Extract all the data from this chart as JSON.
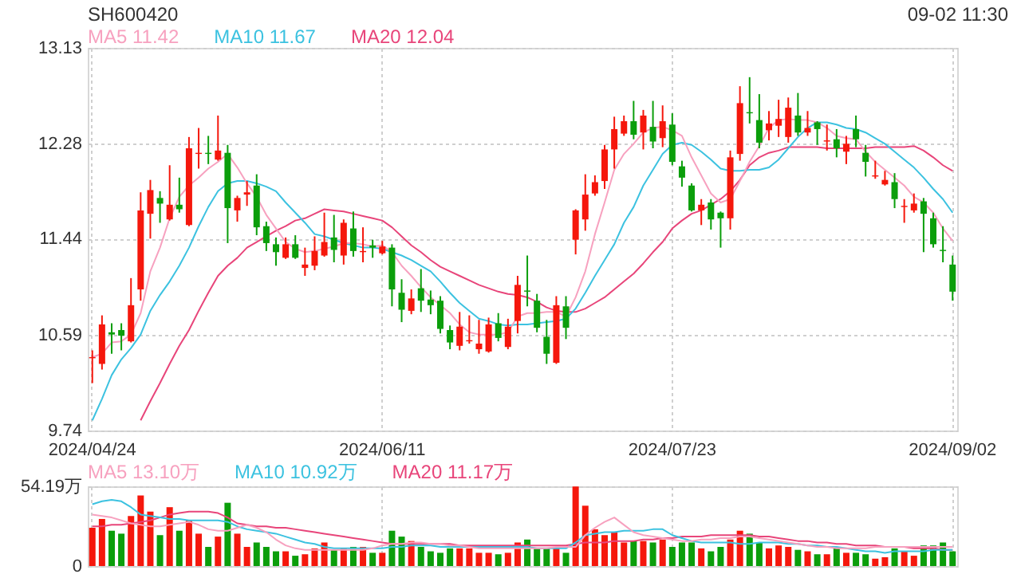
{
  "chart_data": [
    {
      "type": "candlestick",
      "title": "SH600420",
      "annotations": [
        "09-02 11:30"
      ],
      "categories": [
        "2024/04/24",
        null,
        null,
        null,
        null,
        null,
        null,
        null,
        null,
        null,
        null,
        null,
        null,
        null,
        null,
        null,
        null,
        null,
        null,
        null,
        null,
        null,
        null,
        null,
        null,
        null,
        null,
        null,
        null,
        null,
        "2024/06/11",
        null,
        null,
        null,
        null,
        null,
        null,
        null,
        null,
        null,
        null,
        null,
        null,
        null,
        null,
        null,
        null,
        null,
        null,
        null,
        null,
        null,
        null,
        null,
        null,
        null,
        null,
        null,
        null,
        null,
        "2024/07/23",
        null,
        null,
        null,
        null,
        null,
        null,
        null,
        null,
        null,
        null,
        null,
        null,
        null,
        null,
        null,
        null,
        null,
        null,
        null,
        null,
        null,
        null,
        null,
        null,
        null,
        null,
        null,
        null,
        "2024/09/02"
      ],
      "ohlc": [
        [
          10.38,
          10.45,
          10.16,
          10.39
        ],
        [
          10.33,
          10.76,
          10.28,
          10.68
        ],
        [
          10.61,
          10.69,
          10.42,
          10.59
        ],
        [
          10.63,
          10.69,
          10.45,
          10.58
        ],
        [
          10.53,
          11.09,
          10.52,
          10.85
        ],
        [
          10.99,
          11.85,
          10.89,
          11.69
        ],
        [
          11.66,
          11.96,
          11.44,
          11.87
        ],
        [
          11.8,
          11.86,
          11.58,
          11.75
        ],
        [
          11.61,
          12.09,
          11.6,
          11.74
        ],
        [
          11.74,
          11.98,
          11.67,
          11.7
        ],
        [
          11.56,
          12.34,
          11.55,
          12.24
        ],
        [
          12.19,
          12.42,
          12.06,
          12.2
        ],
        [
          12.2,
          12.35,
          12.1,
          12.19
        ],
        [
          12.14,
          12.53,
          12.13,
          12.22
        ],
        [
          12.2,
          12.27,
          11.4,
          11.71
        ],
        [
          11.69,
          11.82,
          11.59,
          11.8
        ],
        [
          11.83,
          11.95,
          11.73,
          11.85
        ],
        [
          11.91,
          12.01,
          11.47,
          11.54
        ],
        [
          11.55,
          11.59,
          11.33,
          11.4
        ],
        [
          11.39,
          11.45,
          11.2,
          11.32
        ],
        [
          11.27,
          11.45,
          11.26,
          11.39
        ],
        [
          11.39,
          11.47,
          11.26,
          11.27
        ],
        [
          11.18,
          11.36,
          11.11,
          11.21
        ],
        [
          11.2,
          11.46,
          11.16,
          11.33
        ],
        [
          11.29,
          11.67,
          11.28,
          11.41
        ],
        [
          11.45,
          11.65,
          11.23,
          11.34
        ],
        [
          11.29,
          11.61,
          11.21,
          11.58
        ],
        [
          11.53,
          11.68,
          11.28,
          11.33
        ],
        [
          11.32,
          11.54,
          11.23,
          11.33
        ],
        [
          11.38,
          11.43,
          11.27,
          11.36
        ],
        [
          11.31,
          11.42,
          11.3,
          11.37
        ],
        [
          11.36,
          11.39,
          10.84,
          10.99
        ],
        [
          10.96,
          11.08,
          10.7,
          10.81
        ],
        [
          10.8,
          10.99,
          10.77,
          10.91
        ],
        [
          11.0,
          11.17,
          10.79,
          10.89
        ],
        [
          10.9,
          10.98,
          10.77,
          10.85
        ],
        [
          10.89,
          10.93,
          10.6,
          10.64
        ],
        [
          10.63,
          10.67,
          10.46,
          10.52
        ],
        [
          10.49,
          10.79,
          10.45,
          10.66
        ],
        [
          10.53,
          10.76,
          10.51,
          10.54
        ],
        [
          10.46,
          10.72,
          10.42,
          10.51
        ],
        [
          10.44,
          10.74,
          10.43,
          10.68
        ],
        [
          10.69,
          10.78,
          10.53,
          10.56
        ],
        [
          10.48,
          10.73,
          10.46,
          10.66
        ],
        [
          10.71,
          11.11,
          10.6,
          11.03
        ],
        [
          10.98,
          11.29,
          10.84,
          10.97
        ],
        [
          10.89,
          10.95,
          10.61,
          10.65
        ],
        [
          10.57,
          10.72,
          10.33,
          10.42
        ],
        [
          10.34,
          10.93,
          10.33,
          10.85
        ],
        [
          10.84,
          10.93,
          10.55,
          10.65
        ],
        [
          11.43,
          11.7,
          11.3,
          11.69
        ],
        [
          11.61,
          12.01,
          11.51,
          11.83
        ],
        [
          11.84,
          12.0,
          11.82,
          11.94
        ],
        [
          11.95,
          12.27,
          11.88,
          12.23
        ],
        [
          12.23,
          12.52,
          12.06,
          12.41
        ],
        [
          12.37,
          12.53,
          12.35,
          12.48
        ],
        [
          12.48,
          12.66,
          12.32,
          12.36
        ],
        [
          12.38,
          12.58,
          12.23,
          12.53
        ],
        [
          12.43,
          12.66,
          12.24,
          12.3
        ],
        [
          12.33,
          12.62,
          12.25,
          12.48
        ],
        [
          12.45,
          12.55,
          12.09,
          12.12
        ],
        [
          12.08,
          12.13,
          11.9,
          11.98
        ],
        [
          11.91,
          11.93,
          11.68,
          11.69
        ],
        [
          11.69,
          11.79,
          11.56,
          11.74
        ],
        [
          11.76,
          11.79,
          11.52,
          11.61
        ],
        [
          11.67,
          11.68,
          11.36,
          11.62
        ],
        [
          11.62,
          12.22,
          11.52,
          12.16
        ],
        [
          12.19,
          12.79,
          12.13,
          12.64
        ],
        [
          12.56,
          12.87,
          12.46,
          12.55
        ],
        [
          12.49,
          12.72,
          12.24,
          12.29
        ],
        [
          12.4,
          12.57,
          12.31,
          12.46
        ],
        [
          12.44,
          12.67,
          12.34,
          12.5
        ],
        [
          12.34,
          12.69,
          12.29,
          12.6
        ],
        [
          12.53,
          12.73,
          12.35,
          12.38
        ],
        [
          12.38,
          12.57,
          12.35,
          12.42
        ],
        [
          12.47,
          12.48,
          12.27,
          12.41
        ],
        [
          12.3,
          12.45,
          12.22,
          12.31
        ],
        [
          12.32,
          12.41,
          12.16,
          12.24
        ],
        [
          12.21,
          12.35,
          12.1,
          12.28
        ],
        [
          12.41,
          12.53,
          12.25,
          12.32
        ],
        [
          12.2,
          12.27,
          11.99,
          12.12
        ],
        [
          11.99,
          12.13,
          11.97,
          12.0
        ],
        [
          11.92,
          12.04,
          11.91,
          11.96
        ],
        [
          11.94,
          12.02,
          11.71,
          11.79
        ],
        [
          11.72,
          11.79,
          11.58,
          11.73
        ],
        [
          11.69,
          11.84,
          11.67,
          11.75
        ],
        [
          11.77,
          11.8,
          11.32,
          11.66
        ],
        [
          11.62,
          11.67,
          11.36,
          11.39
        ],
        [
          11.34,
          11.55,
          11.23,
          11.33
        ],
        [
          11.21,
          11.29,
          10.89,
          10.97
        ]
      ],
      "colors": [
        "#f5170c",
        "#f5170c",
        "#0b9e0b",
        "#0b9e0b",
        "#f5170c",
        "#f5170c",
        "#f5170c",
        "#0b9e0b",
        "#f5170c",
        "#0b9e0b",
        "#f5170c",
        "#f5170c",
        "#0b9e0b",
        "#f5170c",
        "#0b9e0b",
        "#f5170c",
        "#f5170c",
        "#0b9e0b",
        "#0b9e0b",
        "#0b9e0b",
        "#f5170c",
        "#0b9e0b",
        "#f5170c",
        "#f5170c",
        "#f5170c",
        "#0b9e0b",
        "#f5170c",
        "#0b9e0b",
        "#f5170c",
        "#0b9e0b",
        "#f5170c",
        "#0b9e0b",
        "#0b9e0b",
        "#f5170c",
        "#0b9e0b",
        "#0b9e0b",
        "#0b9e0b",
        "#0b9e0b",
        "#f5170c",
        "#f5170c",
        "#f5170c",
        "#f5170c",
        "#0b9e0b",
        "#f5170c",
        "#f5170c",
        "#0b9e0b",
        "#0b9e0b",
        "#0b9e0b",
        "#f5170c",
        "#0b9e0b",
        "#f5170c",
        "#f5170c",
        "#f5170c",
        "#f5170c",
        "#f5170c",
        "#f5170c",
        "#0b9e0b",
        "#f5170c",
        "#0b9e0b",
        "#f5170c",
        "#0b9e0b",
        "#0b9e0b",
        "#0b9e0b",
        "#f5170c",
        "#0b9e0b",
        "#0b9e0b",
        "#f5170c",
        "#f5170c",
        "#0b9e0b",
        "#0b9e0b",
        "#f5170c",
        "#f5170c",
        "#f5170c",
        "#0b9e0b",
        "#f5170c",
        "#0b9e0b",
        "#f5170c",
        "#0b9e0b",
        "#f5170c",
        "#0b9e0b",
        "#0b9e0b",
        "#f5170c",
        "#f5170c",
        "#0b9e0b",
        "#f5170c",
        "#f5170c",
        "#0b9e0b",
        "#0b9e0b",
        "#0b9e0b",
        "#0b9e0b"
      ],
      "series": [
        {
          "name": "MA5 11.42",
          "type": "line",
          "color": "#f7a1bf",
          "values": [
            10.39,
            10.42,
            10.52,
            10.53,
            10.59,
            10.78,
            11.15,
            11.36,
            11.62,
            11.81,
            11.91,
            11.98,
            12.06,
            12.12,
            12.19,
            12.07,
            11.93,
            11.81,
            11.65,
            11.53,
            11.41,
            11.35,
            11.32,
            11.33,
            11.35,
            11.37,
            11.4,
            11.4,
            11.39,
            11.37,
            11.38,
            11.32,
            11.2,
            11.11,
            11.01,
            10.92,
            10.85,
            10.78,
            10.68,
            10.61,
            10.59,
            10.59,
            10.59,
            10.61,
            10.75,
            10.78,
            10.78,
            10.79,
            10.79,
            10.75,
            10.92,
            11.15,
            11.48,
            11.76,
            12.05,
            12.19,
            12.28,
            12.38,
            12.42,
            12.43,
            12.4,
            12.35,
            12.16,
            12.0,
            11.84,
            11.76,
            11.79,
            11.95,
            12.12,
            12.26,
            12.42,
            12.49,
            12.5,
            12.49,
            12.49,
            12.47,
            12.42,
            12.35,
            12.33,
            12.32,
            12.21,
            12.12,
            12.05,
            11.98,
            11.91,
            11.81,
            11.76,
            11.67,
            11.53,
            11.42
          ]
        },
        {
          "name": "MA10 11.67",
          "type": "line",
          "color": "#3cc2e0",
          "values": [
            9.83,
            10.02,
            10.23,
            10.37,
            10.47,
            10.59,
            10.8,
            10.94,
            11.06,
            11.2,
            11.36,
            11.55,
            11.72,
            11.86,
            11.93,
            11.95,
            11.95,
            11.93,
            11.9,
            11.86,
            11.76,
            11.67,
            11.58,
            11.48,
            11.46,
            11.43,
            11.4,
            11.38,
            11.36,
            11.36,
            11.35,
            11.32,
            11.29,
            11.25,
            11.2,
            11.15,
            11.06,
            10.96,
            10.87,
            10.8,
            10.73,
            10.71,
            10.68,
            10.67,
            10.68,
            10.68,
            10.69,
            10.7,
            10.71,
            10.73,
            10.82,
            10.96,
            11.11,
            11.25,
            11.39,
            11.58,
            11.72,
            11.91,
            12.05,
            12.19,
            12.27,
            12.29,
            12.27,
            12.21,
            12.14,
            12.06,
            12.04,
            12.04,
            12.05,
            12.05,
            12.07,
            12.14,
            12.24,
            12.34,
            12.42,
            12.47,
            12.47,
            12.45,
            12.42,
            12.41,
            12.38,
            12.33,
            12.28,
            12.21,
            12.14,
            12.07,
            11.98,
            11.88,
            11.79,
            11.67
          ]
        },
        {
          "name": "MA20 12.04",
          "type": "line",
          "color": "#e8457a",
          "values": [
            null,
            null,
            null,
            null,
            null,
            9.83,
            10.0,
            10.16,
            10.33,
            10.49,
            10.63,
            10.8,
            10.96,
            11.11,
            11.2,
            11.27,
            11.36,
            11.41,
            11.46,
            11.51,
            11.55,
            11.6,
            11.62,
            11.66,
            11.7,
            11.69,
            11.68,
            11.66,
            11.64,
            11.62,
            11.6,
            11.54,
            11.46,
            11.38,
            11.32,
            11.25,
            11.19,
            11.15,
            11.11,
            11.07,
            11.03,
            11.0,
            10.97,
            10.95,
            10.94,
            10.92,
            10.88,
            10.83,
            10.8,
            10.79,
            10.79,
            10.82,
            10.87,
            10.92,
            10.99,
            11.06,
            11.13,
            11.22,
            11.32,
            11.41,
            11.53,
            11.6,
            11.66,
            11.69,
            11.74,
            11.79,
            11.86,
            11.96,
            12.09,
            12.16,
            12.2,
            12.22,
            12.25,
            12.25,
            12.25,
            12.25,
            12.24,
            12.24,
            12.24,
            12.24,
            12.24,
            12.25,
            12.25,
            12.25,
            12.25,
            12.26,
            12.22,
            12.16,
            12.09,
            12.04
          ]
        }
      ],
      "ylim": [
        9.74,
        13.13
      ],
      "yticks": [
        9.74,
        10.59,
        11.44,
        12.28,
        13.13
      ],
      "grid": true,
      "legend": "top left",
      "marker": "none"
    },
    {
      "type": "bar",
      "categories": [
        "2024/04/24",
        null,
        null,
        null,
        null,
        null,
        null,
        null,
        null,
        null,
        null,
        null,
        null,
        null,
        null,
        null,
        null,
        null,
        null,
        null,
        null,
        null,
        null,
        null,
        null,
        null,
        null,
        null,
        null,
        null,
        "2024/06/11",
        null,
        null,
        null,
        null,
        null,
        null,
        null,
        null,
        null,
        null,
        null,
        null,
        null,
        null,
        null,
        null,
        null,
        null,
        null,
        null,
        null,
        null,
        null,
        null,
        null,
        null,
        null,
        null,
        null,
        "2024/07/23",
        null,
        null,
        null,
        null,
        null,
        null,
        null,
        null,
        null,
        null,
        null,
        null,
        null,
        null,
        null,
        null,
        null,
        null,
        null,
        null,
        null,
        null,
        null,
        null,
        null,
        null,
        null,
        null,
        "2024/09/02"
      ],
      "values": [
        26,
        32,
        24,
        22,
        34,
        48,
        37,
        21,
        40,
        24,
        31,
        22,
        13,
        20,
        43,
        22,
        13,
        16,
        13,
        10,
        10,
        7,
        8,
        12,
        16,
        11,
        12,
        13,
        13,
        9,
        9,
        24,
        20,
        17,
        13,
        10,
        9,
        12,
        12,
        12,
        9,
        9,
        8,
        9,
        16,
        18,
        12,
        12,
        12,
        9,
        54,
        41,
        25,
        21,
        23,
        16,
        17,
        17,
        16,
        18,
        13,
        16,
        16,
        12,
        10,
        13,
        18,
        24,
        22,
        16,
        12,
        14,
        13,
        11,
        10,
        8,
        8,
        13,
        9,
        9,
        8,
        5,
        6,
        12,
        10,
        7,
        14,
        14,
        16,
        10
      ],
      "colors": [
        "#f5170c",
        "#f5170c",
        "#0b9e0b",
        "#0b9e0b",
        "#f5170c",
        "#f5170c",
        "#f5170c",
        "#0b9e0b",
        "#f5170c",
        "#0b9e0b",
        "#f5170c",
        "#f5170c",
        "#0b9e0b",
        "#f5170c",
        "#0b9e0b",
        "#f5170c",
        "#f5170c",
        "#0b9e0b",
        "#0b9e0b",
        "#0b9e0b",
        "#f5170c",
        "#0b9e0b",
        "#f5170c",
        "#f5170c",
        "#f5170c",
        "#0b9e0b",
        "#f5170c",
        "#0b9e0b",
        "#f5170c",
        "#0b9e0b",
        "#f5170c",
        "#0b9e0b",
        "#0b9e0b",
        "#f5170c",
        "#0b9e0b",
        "#0b9e0b",
        "#0b9e0b",
        "#0b9e0b",
        "#f5170c",
        "#f5170c",
        "#f5170c",
        "#f5170c",
        "#0b9e0b",
        "#f5170c",
        "#f5170c",
        "#0b9e0b",
        "#0b9e0b",
        "#0b9e0b",
        "#f5170c",
        "#0b9e0b",
        "#f5170c",
        "#f5170c",
        "#f5170c",
        "#f5170c",
        "#f5170c",
        "#f5170c",
        "#0b9e0b",
        "#f5170c",
        "#0b9e0b",
        "#f5170c",
        "#0b9e0b",
        "#0b9e0b",
        "#0b9e0b",
        "#f5170c",
        "#0b9e0b",
        "#0b9e0b",
        "#f5170c",
        "#f5170c",
        "#0b9e0b",
        "#0b9e0b",
        "#f5170c",
        "#f5170c",
        "#f5170c",
        "#0b9e0b",
        "#f5170c",
        "#0b9e0b",
        "#f5170c",
        "#0b9e0b",
        "#f5170c",
        "#0b9e0b",
        "#0b9e0b",
        "#f5170c",
        "#f5170c",
        "#0b9e0b",
        "#f5170c",
        "#f5170c",
        "#0b9e0b",
        "#0b9e0b",
        "#0b9e0b",
        "#0b9e0b"
      ],
      "series": [
        {
          "name": "MA5 13.10万",
          "type": "line",
          "color": "#f7a1bf",
          "values": [
            35,
            34,
            33,
            31,
            29,
            28,
            27,
            27,
            28,
            29,
            30,
            28,
            25,
            24,
            24,
            26,
            28,
            26,
            23,
            18,
            14,
            12,
            11,
            11,
            11,
            11,
            11,
            11,
            11,
            12,
            14,
            15,
            15,
            16,
            16,
            15,
            15,
            14,
            14,
            13,
            12,
            12,
            12,
            12,
            12,
            12,
            12,
            12,
            13,
            13,
            13,
            21,
            26,
            30,
            33,
            28,
            23,
            21,
            20,
            19,
            18,
            17,
            17,
            18,
            18,
            19,
            19,
            20,
            20,
            19,
            18,
            17,
            16,
            15,
            14,
            13,
            13,
            12,
            12,
            12,
            12,
            13,
            13,
            13,
            13,
            13,
            13,
            13,
            13,
            13
          ]
        },
        {
          "name": "MA10 10.92万",
          "type": "line",
          "color": "#3cc2e0",
          "values": [
            42,
            44,
            45,
            44,
            40,
            35,
            34,
            33,
            32,
            32,
            31,
            31,
            31,
            31,
            30,
            27,
            25,
            24,
            23,
            22,
            20,
            18,
            16,
            15,
            13,
            12,
            12,
            12,
            12,
            12,
            12,
            13,
            13,
            14,
            14,
            14,
            13,
            13,
            13,
            13,
            13,
            13,
            13,
            13,
            13,
            13,
            12,
            12,
            12,
            12,
            16,
            21,
            22,
            23,
            23,
            24,
            24,
            24,
            25,
            25,
            21,
            19,
            17,
            16,
            16,
            16,
            16,
            15,
            15,
            16,
            16,
            16,
            15,
            15,
            14,
            14,
            13,
            13,
            12,
            11,
            10,
            10,
            9,
            10,
            10,
            10,
            10,
            11,
            11,
            11
          ]
        },
        {
          "name": "MA20 11.17万",
          "type": "line",
          "color": "#e8457a",
          "values": [
            27,
            27,
            28,
            28,
            29,
            30,
            31,
            33,
            35,
            36,
            37,
            37,
            37,
            36,
            33,
            29,
            28,
            27,
            27,
            26,
            26,
            25,
            24,
            23,
            22,
            21,
            20,
            19,
            18,
            17,
            16,
            15,
            15,
            15,
            15,
            15,
            15,
            15,
            14,
            14,
            14,
            14,
            14,
            14,
            14,
            14,
            14,
            14,
            14,
            14,
            15,
            16,
            16,
            16,
            17,
            17,
            17,
            18,
            18,
            19,
            19,
            20,
            20,
            20,
            21,
            21,
            21,
            21,
            21,
            20,
            20,
            19,
            18,
            17,
            17,
            16,
            16,
            15,
            15,
            14,
            14,
            14,
            13,
            13,
            13,
            12,
            12,
            12,
            11,
            11
          ]
        }
      ],
      "ylim": [
        0,
        54.19
      ],
      "yticks": [
        0,
        {
          "value": 54.19,
          "label": "54.19万"
        }
      ],
      "grid": true,
      "legend": "top left",
      "tick_labels": "y",
      "marker": "none"
    }
  ]
}
